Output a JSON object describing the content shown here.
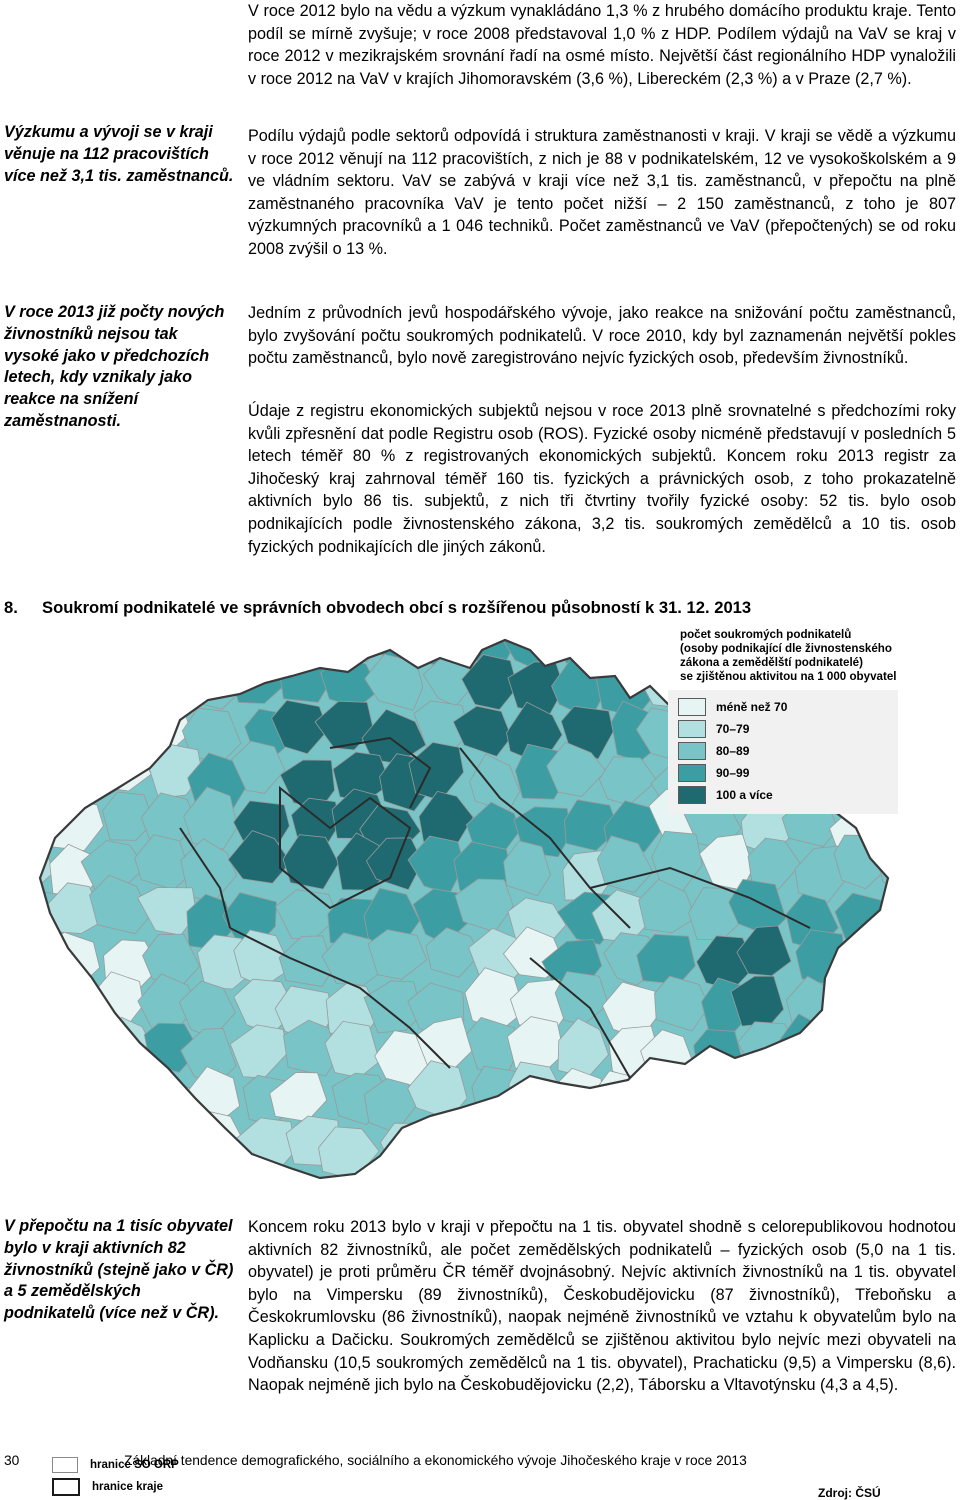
{
  "main": {
    "p1": "V roce 2012 bylo na vědu a výzkum vynakládáno 1,3 % z hrubého domácího produktu kraje. Tento podíl se mírně zvyšuje; v roce 2008 představoval 1,0 % z HDP. Podílem výdajů na VaV se kraj v roce 2012 v mezikrajském srovnání řadí na osmé místo. Největší část regionálního HDP vynaložili v roce 2012 na VaV v krajích Jihomoravském (3,6 %), Libereckém (2,3 %) a v Praze (2,7 %).",
    "p2": "Podílu výdajů podle sektorů odpovídá i struktura zaměstnanosti v kraji. V kraji se vědě a výzkumu v roce 2012 věnují na 112 pracovištích, z nich je 88 v podnikatelském, 12 ve vysokoškolském a 9 ve vládním sektoru. VaV se zabývá v kraji více než 3,1 tis. zaměstnanců, v přepočtu na plně zaměstnaného pracovníka VaV je tento počet nižší – 2 150 zaměstnanců, z toho je 807 výzkumných pracovníků a 1 046 techniků. Počet zaměstnanců ve VaV (přepočtených) se od roku 2008 zvýšil o 13 %.",
    "p3": "Jedním z průvodních jevů hospodářského vývoje, jako reakce na snižování počtu zaměstnanců, bylo zvyšování počtu soukromých podnikatelů. V roce 2010, kdy byl zaznamenán největší pokles počtu zaměstnanců, bylo nově zaregistrováno nejvíc fyzických osob, především živnostníků.",
    "p4": "Údaje z registru ekonomických subjektů nejsou v roce 2013 plně srovnatelné s předchozími roky kvůli zpřesnění dat podle Registru osob (ROS). Fyzické osoby nicméně představují v posledních 5 letech téměř 80 % z registrovaných ekonomických subjektů. Koncem roku 2013 registr za Jihočeský kraj zahrnoval téměř 160 tis. fyzických a právnických osob, z toho prokazatelně aktivních bylo 86 tis. subjektů, z nich tři čtvrtiny tvořily fyzické osoby: 52 tis. bylo osob podnikajících podle živnostenského zákona, 3,2 tis. soukromých zemědělců a 10 tis. osob fyzických podnikajících dle jiných zákonů.",
    "p5": "Koncem roku 2013 bylo v kraji v přepočtu na 1 tis. obyvatel shodně s celorepublikovou hodnotou aktivních 82 živnostníků, ale počet zemědělských podnikatelů – fyzických osob (5,0 na 1 tis. obyvatel) je proti průměru ČR téměř dvojnásobný. Nejvíc aktivních živnostníků na 1 tis. obyvatel bylo na Vimpersku (89 živnostníků), Českobudějovicku (87 živnostníků), Třeboňsku a Českokrumlovsku (86 živnostníků), naopak nejméně živnostníků ve vztahu k obyvatelům bylo na Kaplicku a Dačicku. Soukromých zemědělců se zjištěnou aktivitou bylo nejvíc mezi obyvateli na Vodňansku (10,5 soukromých zemědělců na 1 tis. obyvatel), Prachaticku (9,5) a Vimpersku (8,6). Naopak nejméně jich bylo na Českobudějovicku (2,2), Táborsku a Vltavotýnsku (4,3 a 4,5)."
  },
  "sidebar": {
    "note1": "Výzkumu a vývoji se v kraji věnuje na 112 pracovištích více než 3,1 tis. zaměstnanců.",
    "note2": "V roce 2013 již počty nových živnostníků nejsou tak vysoké jako v předchozích letech, kdy vznikaly jako reakce na snížení zaměstnanosti.",
    "note3": "V přepočtu na 1 tisíc obyvatel bylo v kraji aktivních 82 živnostníků (stejně jako v ČR) a 5 zemědělských podnikatelů (více než v ČR)."
  },
  "figure": {
    "number": "8.",
    "title": "Soukromí podnikatelé ve správních obvodech obcí s rozšířenou působností k 31. 12. 2013",
    "legend_title_lines": [
      "počet soukromých podnikatelů",
      "(osoby podnikající dle živnostenského",
      "zákona a zemědělští podnikatelé)",
      "se zjištěnou aktivitou na 1 000 obyvatel"
    ],
    "legend_items": [
      {
        "label": "méně než 70",
        "color": "#e6f4f4"
      },
      {
        "label": "70–79",
        "color": "#b2dfe0"
      },
      {
        "label": "80–89",
        "color": "#78c4c7"
      },
      {
        "label": "90–99",
        "color": "#3c9ea3"
      },
      {
        "label": "100 a více",
        "color": "#1f6a70"
      }
    ],
    "boundary_orp": "hranice SO ORP",
    "boundary_kraj": "hranice kraje",
    "source": "Zdroj: ČSÚ",
    "color_scale": [
      "#e6f4f4",
      "#b2dfe0",
      "#78c4c7",
      "#3c9ea3",
      "#1f6a70"
    ]
  },
  "footer": {
    "page_number": "30",
    "text": "Základní tendence demografického, sociálního a ekonomického vývoje Jihočeského kraje v roce 2013"
  }
}
